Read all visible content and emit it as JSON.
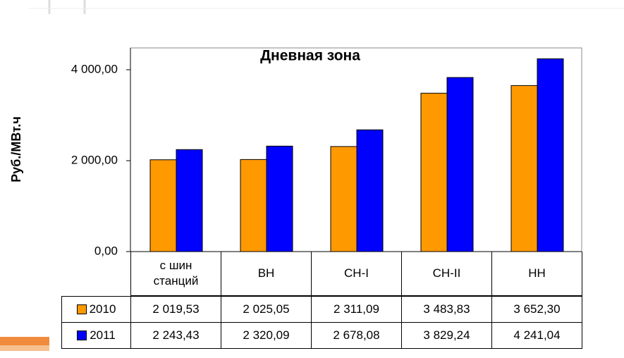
{
  "chart_data": {
    "type": "bar",
    "title": "Дневная зона",
    "y_label": "Руб./МВт.ч",
    "categories": [
      "с шин\nстанций",
      "ВН",
      "СН-I",
      "СН-II",
      "НН"
    ],
    "series": [
      {
        "name": "2010",
        "color": "#ff9900",
        "values": [
          2019.53,
          2025.05,
          2311.09,
          3483.83,
          3652.3
        ],
        "value_labels": [
          "2 019,53",
          "2 025,05",
          "2 311,09",
          "3 483,83",
          "3 652,30"
        ]
      },
      {
        "name": "2011",
        "color": "#0000ff",
        "values": [
          2243.43,
          2320.09,
          2678.08,
          3829.24,
          4241.04
        ],
        "value_labels": [
          "2 243,43",
          "2 320,09",
          "2 678,08",
          "3 829,24",
          "4 241,04"
        ]
      }
    ],
    "ylim": [
      0,
      4480
    ],
    "yticks": [
      {
        "value": 0,
        "label": "0,00"
      },
      {
        "value": 2000,
        "label": "2 000,00"
      },
      {
        "value": 4000,
        "label": "4 000,00"
      }
    ],
    "grid": false
  }
}
